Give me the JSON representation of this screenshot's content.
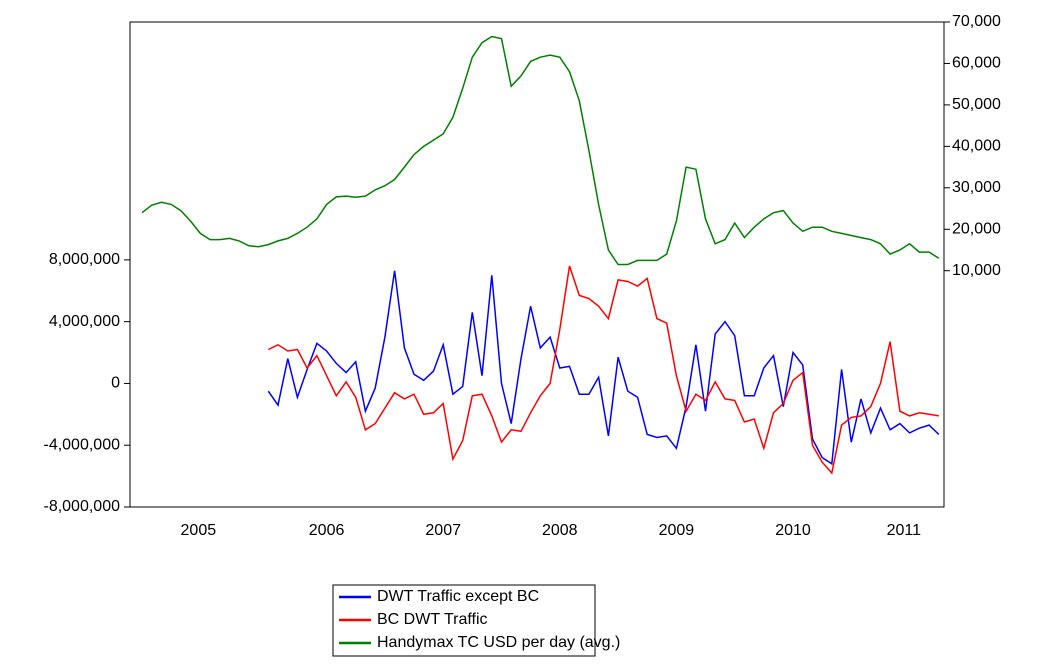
{
  "chart_data": {
    "type": "line",
    "x": [
      2004.917,
      2005.0,
      2005.083,
      2005.167,
      2005.25,
      2005.333,
      2005.417,
      2005.5,
      2005.583,
      2005.667,
      2005.75,
      2005.833,
      2005.917,
      2006.0,
      2006.083,
      2006.167,
      2006.25,
      2006.333,
      2006.417,
      2006.5,
      2006.583,
      2006.667,
      2006.75,
      2006.833,
      2006.917,
      2007.0,
      2007.083,
      2007.167,
      2007.25,
      2007.333,
      2007.417,
      2007.5,
      2007.583,
      2007.667,
      2007.75,
      2007.833,
      2007.917,
      2008.0,
      2008.083,
      2008.167,
      2008.25,
      2008.333,
      2008.417,
      2008.5,
      2008.583,
      2008.667,
      2008.75,
      2008.833,
      2008.917,
      2009.0,
      2009.083,
      2009.167,
      2009.25,
      2009.333,
      2009.417,
      2009.5,
      2009.583,
      2009.667,
      2009.75,
      2009.833,
      2009.917,
      2010.0,
      2010.083,
      2010.167,
      2010.25,
      2010.333,
      2010.417,
      2010.5,
      2010.583,
      2010.667,
      2010.75,
      2010.833,
      2010.917,
      2011.0,
      2011.083,
      2011.167,
      2011.25,
      2011.333,
      2011.417,
      2011.5,
      2011.583,
      2011.667,
      2011.75
    ],
    "series": [
      {
        "name": "DWT Traffic except BC",
        "color": "#0000ff",
        "values": [
          null,
          null,
          null,
          null,
          null,
          null,
          null,
          null,
          null,
          null,
          null,
          null,
          null,
          -500000,
          -1400000,
          1600000,
          -900000,
          900000,
          2600000,
          2100000,
          1300000,
          700000,
          1400000,
          -1800000,
          -300000,
          3000000,
          7300000,
          2300000,
          600000,
          200000,
          800000,
          2500000,
          -700000,
          -200000,
          4600000,
          500000,
          7000000,
          0,
          -2600000,
          1600000,
          5000000,
          2300000,
          3000000,
          1000000,
          1100000,
          -700000,
          -700000,
          400000,
          -3400000,
          1700000,
          -500000,
          -900000,
          -3300000,
          -3500000,
          -3400000,
          -4200000,
          -1500000,
          2500000,
          -1800000,
          3200000,
          4000000,
          3100000,
          -800000,
          -800000,
          1000000,
          1800000,
          -1500000,
          2000000,
          1200000,
          -3600000,
          -4800000,
          -5200000,
          900000,
          -3800000,
          -1000000,
          -3200000,
          -1600000,
          -3000000,
          -2600000,
          -3200000,
          -2900000,
          -2700000,
          -3300000
        ]
      },
      {
        "name": "BC DWT Traffic",
        "color": "#ff0000",
        "values": [
          null,
          null,
          null,
          null,
          null,
          null,
          null,
          null,
          null,
          null,
          null,
          null,
          null,
          2200000,
          2500000,
          2100000,
          2200000,
          1000000,
          1800000,
          500000,
          -800000,
          100000,
          -900000,
          -3000000,
          -2600000,
          -1600000,
          -600000,
          -1000000,
          -700000,
          -2000000,
          -1900000,
          -1300000,
          -4900000,
          -3700000,
          -800000,
          -700000,
          -2100000,
          -3800000,
          -3000000,
          -3100000,
          -1900000,
          -800000,
          0,
          3500000,
          7600000,
          5700000,
          5500000,
          5000000,
          4200000,
          6700000,
          6600000,
          6300000,
          6800000,
          4200000,
          3900000,
          500000,
          -1800000,
          -700000,
          -1100000,
          100000,
          -1000000,
          -1100000,
          -2500000,
          -2300000,
          -4200000,
          -1900000,
          -1300000,
          200000,
          700000,
          -4000000,
          -5100000,
          -5800000,
          -2700000,
          -2200000,
          -2100000,
          -1500000,
          0,
          2700000,
          -1800000,
          -2100000,
          -1900000,
          -2000000,
          -2100000
        ]
      },
      {
        "name": "Handymax TC USD per day (avg.)",
        "color": "#008000",
        "axis": "y2",
        "values": [
          24000,
          25800,
          26500,
          26000,
          24500,
          22000,
          19000,
          17500,
          17500,
          17800,
          17200,
          16000,
          15800,
          16300,
          17200,
          17800,
          19000,
          20500,
          22500,
          26000,
          27800,
          28000,
          27700,
          28000,
          29500,
          30500,
          32000,
          35000,
          38000,
          40000,
          41500,
          43000,
          47000,
          54000,
          61500,
          65000,
          66500,
          66000,
          54500,
          57000,
          60500,
          61500,
          62000,
          61500,
          58000,
          51000,
          39000,
          26000,
          15000,
          11500,
          11500,
          12500,
          12500,
          12500,
          14000,
          22000,
          35000,
          34500,
          22500,
          16500,
          17500,
          21500,
          18000,
          20500,
          22500,
          24000,
          24500,
          21500,
          19500,
          20500,
          20500,
          19500,
          19000,
          18500,
          18000,
          17500,
          16500,
          14000,
          15000,
          16500,
          14500,
          14500,
          13000
        ]
      }
    ],
    "xlim": [
      2004.814,
      2011.795
    ],
    "xticks": [
      {
        "value": 2005.4,
        "label": "2005"
      },
      {
        "value": 2006.5,
        "label": "2006"
      },
      {
        "value": 2007.5,
        "label": "2007"
      },
      {
        "value": 2008.5,
        "label": "2008"
      },
      {
        "value": 2009.5,
        "label": "2009"
      },
      {
        "value": 2010.5,
        "label": "2010"
      },
      {
        "value": 2011.45,
        "label": "2011"
      }
    ],
    "ylim": [
      -8000000,
      23400000
    ],
    "yticks": [
      {
        "value": -8000000,
        "label": "-8,000,000"
      },
      {
        "value": -4000000,
        "label": "-4,000,000"
      },
      0,
      {
        "value": 4000000,
        "label": "4,000,000"
      },
      {
        "value": 8000000,
        "label": "8,000,000"
      }
    ],
    "y2lim": [
      -47000,
      70000
    ],
    "y2ticks": [
      {
        "value": 10000,
        "label": "10,000"
      },
      {
        "value": 20000,
        "label": "20,000"
      },
      {
        "value": 30000,
        "label": "30,000"
      },
      {
        "value": 40000,
        "label": "40,000"
      },
      {
        "value": 50000,
        "label": "50,000"
      },
      {
        "value": 60000,
        "label": "60,000"
      },
      {
        "value": 70000,
        "label": "70,000"
      }
    ],
    "legend": "bottom"
  }
}
